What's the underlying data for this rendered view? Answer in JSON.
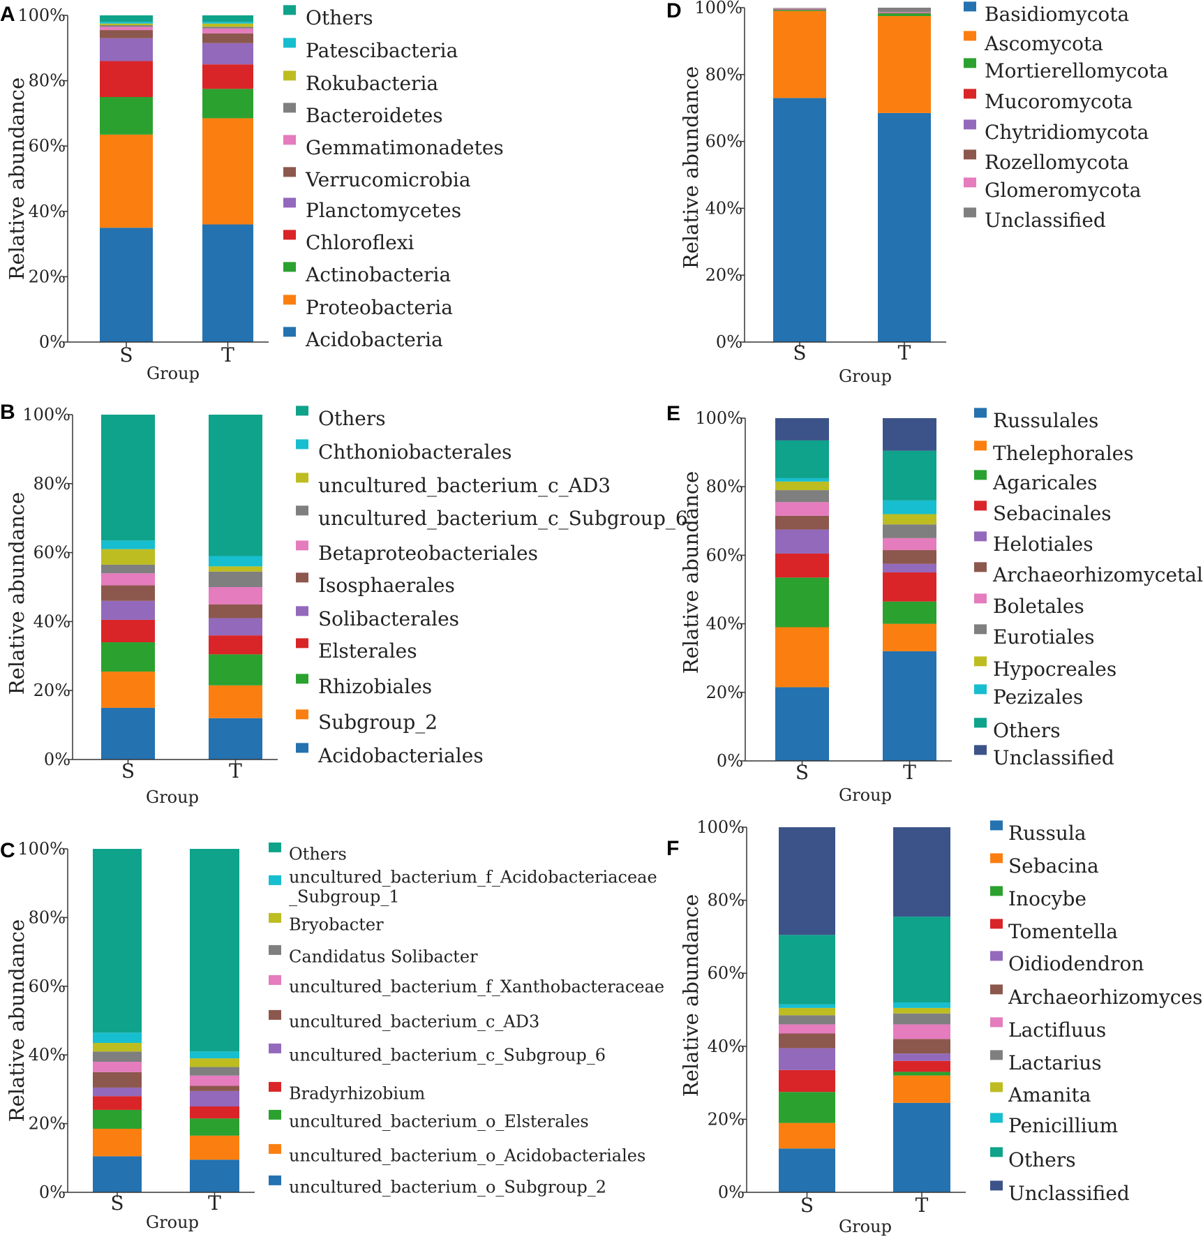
{
  "colors": {
    "blue": "#2472B0",
    "orange": "#FB7F10",
    "green": "#2BA130",
    "red": "#D92527",
    "purple": "#9369BC",
    "brown": "#8C574D",
    "pink": "#E47CBD",
    "gray": "#7F7F7F",
    "olive": "#BDBD22",
    "cyan": "#17BECF",
    "teal": "#0EA38A",
    "navy": "#3C5389"
  },
  "chart_data": [
    {
      "panel": "A",
      "type": "stacked-bar",
      "title": "",
      "xlabel": "Group",
      "ylabel": "Relative abundance",
      "ylim": [
        0,
        100
      ],
      "yticks": [
        "0%",
        "20%",
        "40%",
        "60%",
        "80%",
        "100%"
      ],
      "categories": [
        "S",
        "T"
      ],
      "series": [
        {
          "name": "Acidobacteria",
          "color": "blue",
          "values": [
            35.0,
            36.0
          ]
        },
        {
          "name": "Proteobacteria",
          "color": "orange",
          "values": [
            28.5,
            32.5
          ]
        },
        {
          "name": "Actinobacteria",
          "color": "green",
          "values": [
            11.5,
            9.0
          ]
        },
        {
          "name": "Chloroflexi",
          "color": "red",
          "values": [
            11.0,
            7.5
          ]
        },
        {
          "name": "Planctomycetes",
          "color": "purple",
          "values": [
            7.0,
            6.5
          ]
        },
        {
          "name": "Verrucomicrobia",
          "color": "brown",
          "values": [
            2.5,
            3.0
          ]
        },
        {
          "name": "Gemmatimonadetes",
          "color": "pink",
          "values": [
            1.0,
            1.5
          ]
        },
        {
          "name": "Bacteroidetes",
          "color": "gray",
          "values": [
            0.5,
            0.5
          ]
        },
        {
          "name": "Rokubacteria",
          "color": "olive",
          "values": [
            0.5,
            1.0
          ]
        },
        {
          "name": "Patescibacteria",
          "color": "cyan",
          "values": [
            0.5,
            0.5
          ]
        },
        {
          "name": "Others",
          "color": "teal",
          "values": [
            2.0,
            2.0
          ]
        }
      ]
    },
    {
      "panel": "B",
      "type": "stacked-bar",
      "title": "",
      "xlabel": "Group",
      "ylabel": "Relative abundance",
      "ylim": [
        0,
        100
      ],
      "yticks": [
        "0%",
        "20%",
        "40%",
        "60%",
        "80%",
        "100%"
      ],
      "categories": [
        "S",
        "T"
      ],
      "series": [
        {
          "name": "Acidobacteriales",
          "color": "blue",
          "values": [
            15.0,
            12.0
          ]
        },
        {
          "name": "Subgroup_2",
          "color": "orange",
          "values": [
            10.5,
            9.5
          ]
        },
        {
          "name": "Rhizobiales",
          "color": "green",
          "values": [
            8.5,
            9.0
          ]
        },
        {
          "name": "Elsterales",
          "color": "red",
          "values": [
            6.5,
            5.5
          ]
        },
        {
          "name": "Solibacterales",
          "color": "purple",
          "values": [
            5.5,
            5.0
          ]
        },
        {
          "name": "Isosphaerales",
          "color": "brown",
          "values": [
            4.5,
            4.0
          ]
        },
        {
          "name": "Betaproteobacteriales",
          "color": "pink",
          "values": [
            3.5,
            5.0
          ]
        },
        {
          "name": "uncultured_bacterium_c_Subgroup_6",
          "color": "gray",
          "values": [
            2.5,
            4.5
          ]
        },
        {
          "name": "uncultured_bacterium_c_AD3",
          "color": "olive",
          "values": [
            4.5,
            1.5
          ]
        },
        {
          "name": "Chthoniobacterales",
          "color": "cyan",
          "values": [
            2.5,
            3.0
          ]
        },
        {
          "name": "Others",
          "color": "teal",
          "values": [
            36.5,
            41.0
          ]
        }
      ]
    },
    {
      "panel": "C",
      "type": "stacked-bar",
      "title": "",
      "xlabel": "Group",
      "ylabel": "Relative abundance",
      "ylim": [
        0,
        100
      ],
      "yticks": [
        "0%",
        "20%",
        "40%",
        "60%",
        "80%",
        "100%"
      ],
      "categories": [
        "S",
        "T"
      ],
      "series": [
        {
          "name": "uncultured_bacterium_o_Subgroup_2",
          "color": "blue",
          "values": [
            10.5,
            9.5
          ]
        },
        {
          "name": "uncultured_bacterium_o_Acidobacteriales",
          "color": "orange",
          "values": [
            8.0,
            7.0
          ]
        },
        {
          "name": "uncultured_bacterium_o_Elsterales",
          "color": "green",
          "values": [
            5.5,
            5.0
          ]
        },
        {
          "name": "Bradyrhizobium",
          "color": "red",
          "values": [
            4.0,
            3.5
          ]
        },
        {
          "name": "uncultured_bacterium_c_Subgroup_6",
          "color": "purple",
          "values": [
            2.5,
            4.5
          ]
        },
        {
          "name": "uncultured_bacterium_c_AD3",
          "color": "brown",
          "values": [
            4.5,
            1.5
          ]
        },
        {
          "name": "uncultured_bacterium_f_Xanthobacteraceae",
          "color": "pink",
          "values": [
            3.0,
            3.0
          ]
        },
        {
          "name": "Candidatus Solibacter",
          "color": "gray",
          "values": [
            3.0,
            2.5
          ]
        },
        {
          "name": "Bryobacter",
          "color": "olive",
          "values": [
            2.5,
            2.5
          ]
        },
        {
          "name": "uncultured_bacterium_f_Acidobacteriaceae_Subgroup_1",
          "color": "cyan",
          "values": [
            3.0,
            2.0
          ]
        },
        {
          "name": "Others",
          "color": "teal",
          "values": [
            53.5,
            59.0
          ]
        }
      ]
    },
    {
      "panel": "D",
      "type": "stacked-bar",
      "title": "",
      "xlabel": "Group",
      "ylabel": "Relative abundance",
      "ylim": [
        0,
        100
      ],
      "yticks": [
        "0%",
        "20%",
        "40%",
        "60%",
        "80%",
        "100%"
      ],
      "categories": [
        "S",
        "T"
      ],
      "series": [
        {
          "name": "Basidiomycota",
          "color": "blue",
          "values": [
            73.0,
            68.5
          ]
        },
        {
          "name": "Ascomycota",
          "color": "orange",
          "values": [
            26.0,
            29.0
          ]
        },
        {
          "name": "Mortierellomycota",
          "color": "green",
          "values": [
            0.3,
            0.8
          ]
        },
        {
          "name": "Mucoromycota",
          "color": "red",
          "values": [
            0.1,
            0.1
          ]
        },
        {
          "name": "Chytridiomycota",
          "color": "purple",
          "values": [
            0.1,
            0.1
          ]
        },
        {
          "name": "Rozellomycota",
          "color": "brown",
          "values": [
            0.1,
            0.1
          ]
        },
        {
          "name": "Glomeromycota",
          "color": "pink",
          "values": [
            0.1,
            0.1
          ]
        },
        {
          "name": "Unclassified",
          "color": "gray",
          "values": [
            0.2,
            1.3
          ]
        }
      ]
    },
    {
      "panel": "E",
      "type": "stacked-bar",
      "title": "",
      "xlabel": "Group",
      "ylabel": "Relative abundance",
      "ylim": [
        0,
        100
      ],
      "yticks": [
        "0%",
        "20%",
        "40%",
        "60%",
        "80%",
        "100%"
      ],
      "categories": [
        "S",
        "T"
      ],
      "series": [
        {
          "name": "Russulales",
          "color": "blue",
          "values": [
            21.5,
            32.0
          ]
        },
        {
          "name": "Thelephorales",
          "color": "orange",
          "values": [
            17.5,
            8.0
          ]
        },
        {
          "name": "Agaricales",
          "color": "green",
          "values": [
            14.5,
            6.5
          ]
        },
        {
          "name": "Sebacinales",
          "color": "red",
          "values": [
            7.0,
            8.5
          ]
        },
        {
          "name": "Helotiales",
          "color": "purple",
          "values": [
            7.0,
            2.5
          ]
        },
        {
          "name": "Archaeorhizomycetales",
          "color": "brown",
          "values": [
            4.0,
            4.0
          ]
        },
        {
          "name": "Boletales",
          "color": "pink",
          "values": [
            4.0,
            3.5
          ]
        },
        {
          "name": "Eurotiales",
          "color": "gray",
          "values": [
            3.5,
            4.0
          ]
        },
        {
          "name": "Hypocreales",
          "color": "olive",
          "values": [
            2.5,
            3.0
          ]
        },
        {
          "name": "Pezizales",
          "color": "cyan",
          "values": [
            1.0,
            4.0
          ]
        },
        {
          "name": "Others",
          "color": "teal",
          "values": [
            11.0,
            14.5
          ]
        },
        {
          "name": "Unclassified",
          "color": "navy",
          "values": [
            6.5,
            9.5
          ]
        }
      ]
    },
    {
      "panel": "F",
      "type": "stacked-bar",
      "title": "",
      "xlabel": "Group",
      "ylabel": "Relative abundance",
      "ylim": [
        0,
        100
      ],
      "yticks": [
        "0%",
        "20%",
        "40%",
        "60%",
        "80%",
        "100%"
      ],
      "categories": [
        "S",
        "T"
      ],
      "series": [
        {
          "name": "Russula",
          "color": "blue",
          "values": [
            12.0,
            24.5
          ]
        },
        {
          "name": "Sebacina",
          "color": "orange",
          "values": [
            7.0,
            7.5
          ]
        },
        {
          "name": "Inocybe",
          "color": "green",
          "values": [
            8.5,
            1.0
          ]
        },
        {
          "name": "Tomentella",
          "color": "red",
          "values": [
            6.0,
            3.0
          ]
        },
        {
          "name": "Oidiodendron",
          "color": "purple",
          "values": [
            6.0,
            2.0
          ]
        },
        {
          "name": "Archaeorhizomyces",
          "color": "brown",
          "values": [
            4.0,
            4.0
          ]
        },
        {
          "name": "Lactifluus",
          "color": "pink",
          "values": [
            2.5,
            4.0
          ]
        },
        {
          "name": "Lactarius",
          "color": "gray",
          "values": [
            2.5,
            3.0
          ]
        },
        {
          "name": "Amanita",
          "color": "olive",
          "values": [
            2.0,
            1.5
          ]
        },
        {
          "name": "Penicillium",
          "color": "cyan",
          "values": [
            1.0,
            1.5
          ]
        },
        {
          "name": "Others",
          "color": "teal",
          "values": [
            19.0,
            23.5
          ]
        },
        {
          "name": "Unclassified",
          "color": "navy",
          "values": [
            29.5,
            24.5
          ]
        }
      ]
    }
  ]
}
